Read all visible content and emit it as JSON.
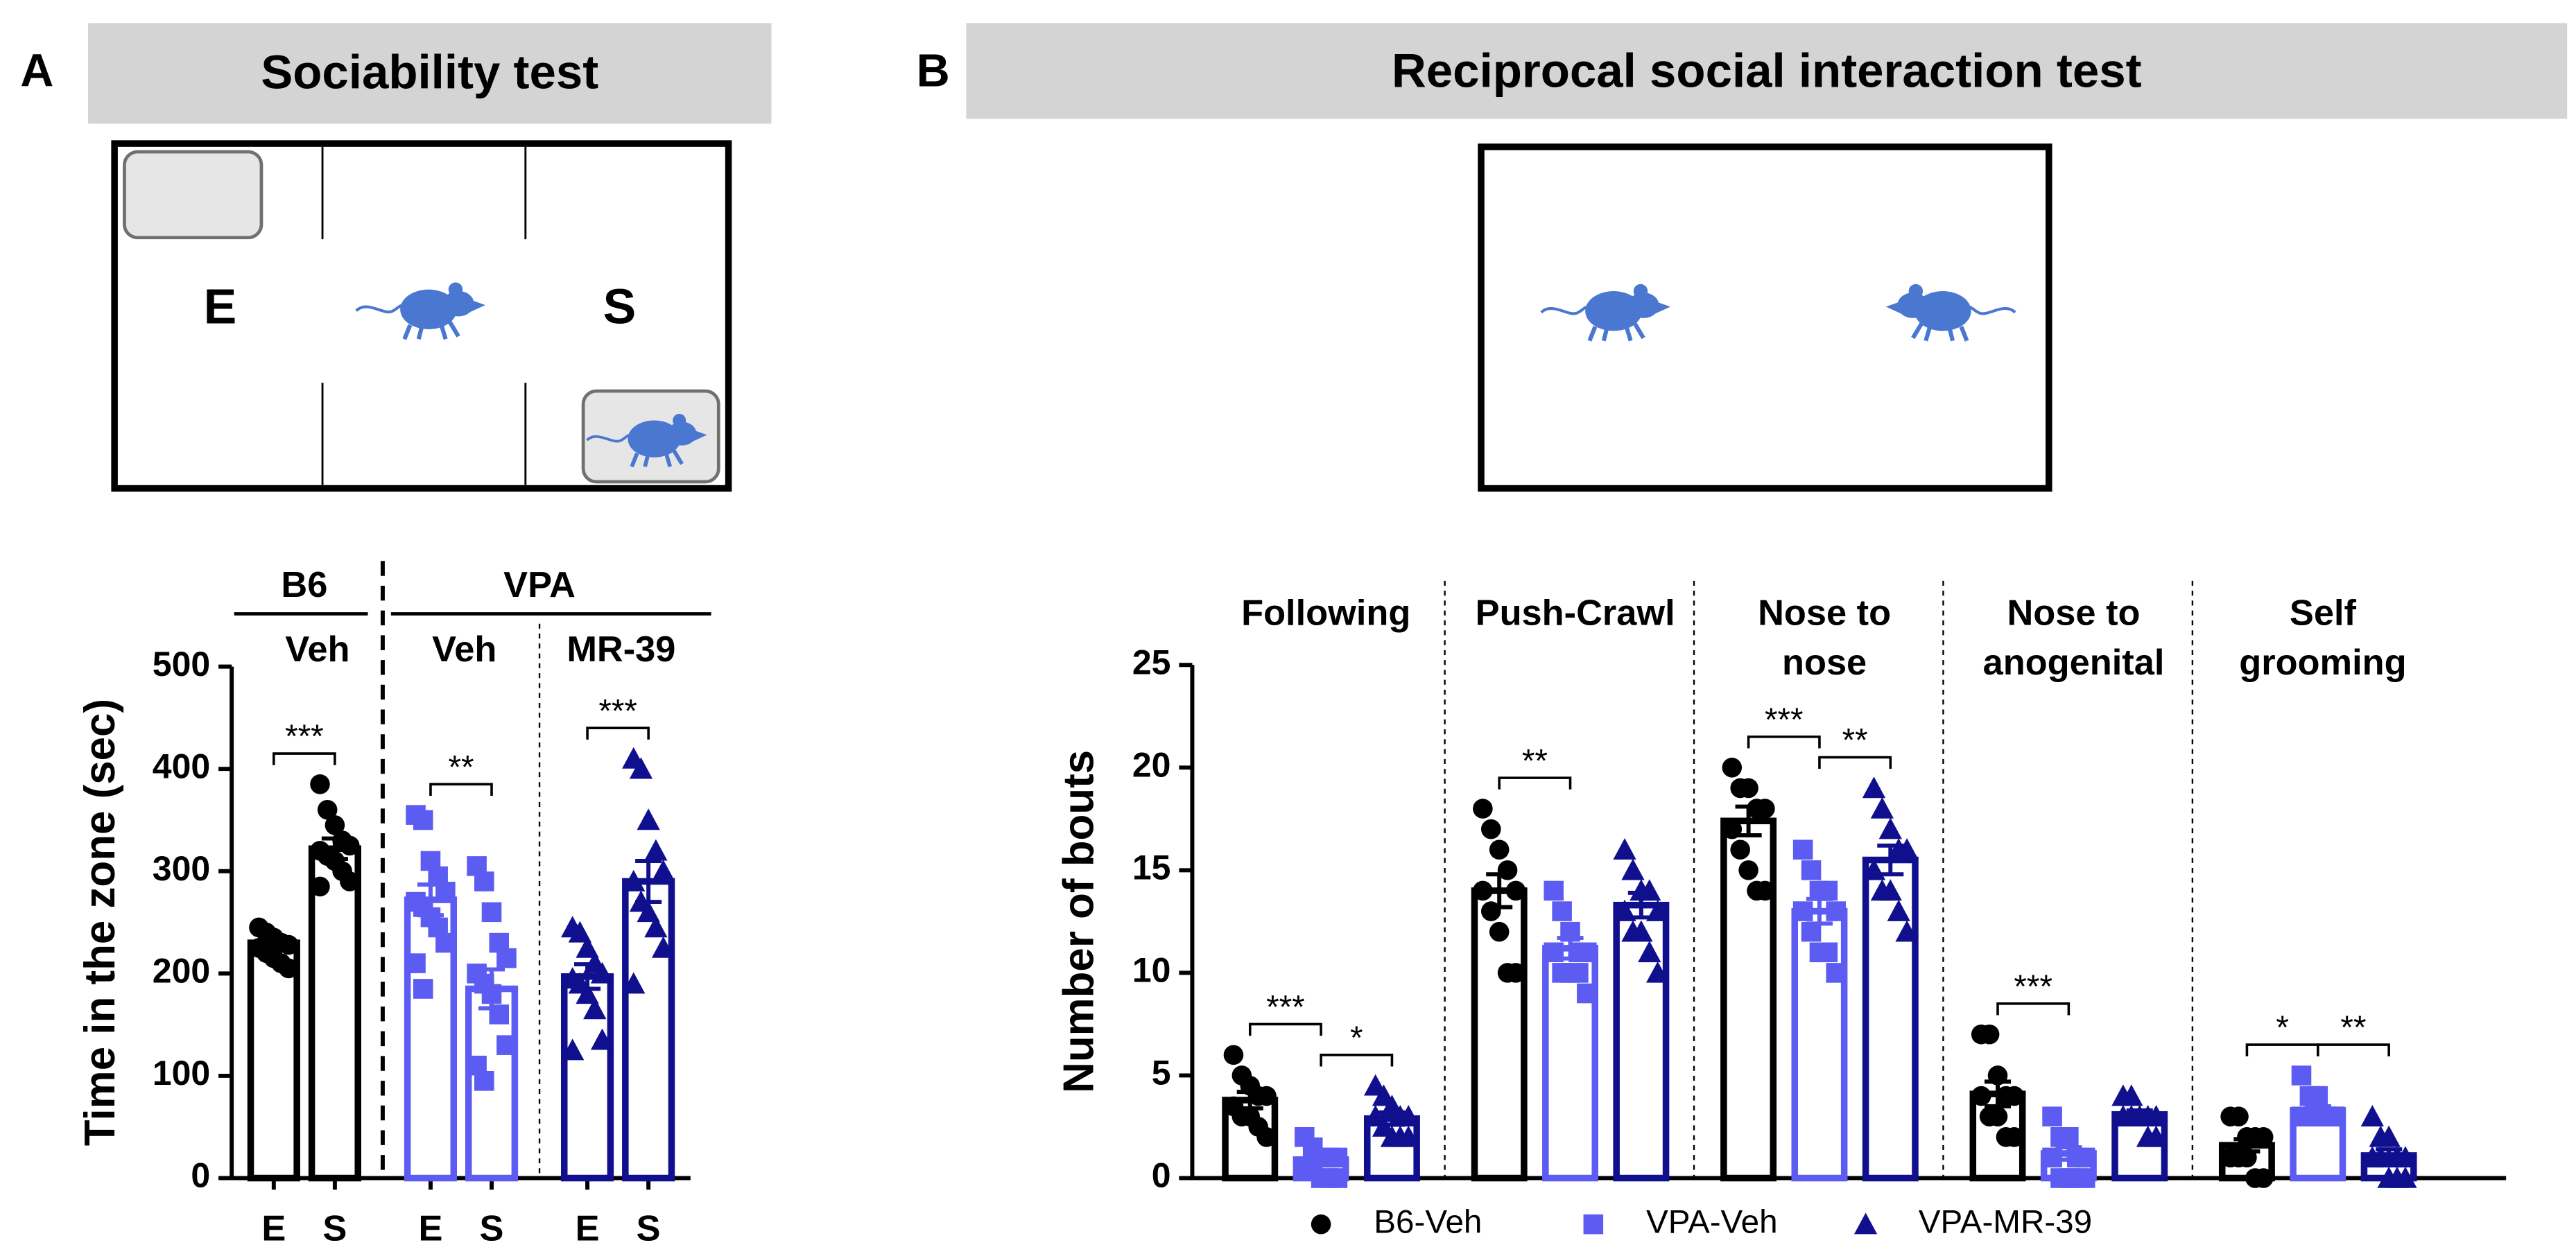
{
  "chart_data": [
    {
      "type": "bar",
      "panel_label": "A",
      "header": "Sociability test",
      "schematic_labels": [
        "E",
        "S"
      ],
      "y_label": "Time in the zone (sec)",
      "ylim": [
        0,
        500
      ],
      "yticks": [
        0,
        100,
        200,
        300,
        400,
        500
      ],
      "group_labels": [
        {
          "label": "B6",
          "subgroups": [
            "Veh"
          ]
        },
        {
          "label": "VPA",
          "subgroups": [
            "Veh",
            "MR-39"
          ]
        }
      ],
      "categories": [
        "E",
        "S",
        "E",
        "S",
        "E",
        "S"
      ],
      "values": [
        230,
        322,
        272,
        185,
        197,
        290
      ],
      "errors": [
        6,
        10,
        15,
        19,
        12,
        20
      ],
      "colors": [
        "#000000",
        "#000000",
        "#5c5cf2",
        "#5c5cf2",
        "#10108f",
        "#10108f"
      ],
      "markers": [
        "circle",
        "circle",
        "square",
        "square",
        "triangle",
        "triangle"
      ],
      "points": [
        [
          245,
          240,
          235,
          230,
          228,
          225,
          220,
          215,
          210,
          205
        ],
        [
          385,
          360,
          345,
          330,
          325,
          320,
          315,
          310,
          300,
          290,
          285
        ],
        [
          355,
          350,
          310,
          295,
          280,
          270,
          265,
          255,
          245,
          230,
          210,
          185
        ],
        [
          305,
          290,
          260,
          230,
          215,
          200,
          190,
          180,
          160,
          130,
          110,
          95
        ],
        [
          245,
          240,
          225,
          210,
          200,
          195,
          190,
          180,
          165,
          135,
          125
        ],
        [
          410,
          400,
          350,
          320,
          300,
          290,
          270,
          260,
          245,
          225,
          190
        ]
      ],
      "significance": [
        {
          "from": 0,
          "to": 1,
          "label": "***"
        },
        {
          "from": 2,
          "to": 3,
          "label": "**"
        },
        {
          "from": 4,
          "to": 5,
          "label": "***"
        }
      ]
    },
    {
      "type": "grouped_bar",
      "panel_label": "B",
      "header": "Reciprocal social interaction test",
      "y_label": "Number of bouts",
      "ylim": [
        0,
        25
      ],
      "yticks": [
        0,
        5,
        10,
        15,
        20,
        25
      ],
      "categories": [
        [
          "Following"
        ],
        [
          "Push-Crawl"
        ],
        [
          "Nose to",
          "nose"
        ],
        [
          "Nose to",
          "anogenital"
        ],
        [
          "Self",
          "grooming"
        ]
      ],
      "series": [
        {
          "name": "B6-Veh",
          "color": "#000000",
          "marker": "circle",
          "values": [
            3.8,
            14,
            17.4,
            4.1,
            1.6
          ],
          "errors": [
            0.4,
            0.8,
            0.7,
            0.6,
            0.3
          ],
          "points": [
            [
              6,
              5,
              4.5,
              4,
              4,
              3.5,
              3,
              3,
              2.5,
              2
            ],
            [
              18,
              17,
              16,
              15,
              14,
              14,
              13,
              12,
              10,
              10
            ],
            [
              20,
              19,
              19,
              18,
              18,
              17,
              16,
              15,
              14,
              14
            ],
            [
              7,
              7,
              5,
              4,
              4,
              4,
              3,
              3,
              2,
              2
            ],
            [
              3,
              3,
              2,
              2,
              2,
              1,
              1,
              1,
              0,
              0
            ]
          ]
        },
        {
          "name": "VPA-Veh",
          "color": "#5c5cf2",
          "marker": "square",
          "values": [
            0.9,
            11.2,
            13,
            1.2,
            3.3
          ],
          "errors": [
            0.2,
            0.5,
            0.6,
            0.3,
            0.2
          ],
          "points": [
            [
              2,
              1.5,
              1,
              1,
              1,
              0.5,
              0.5,
              0,
              0,
              0
            ],
            [
              14,
              13,
              12,
              11,
              11,
              11,
              10,
              10,
              10,
              9
            ],
            [
              16,
              15,
              14,
              14,
              13,
              13,
              12,
              11,
              11,
              10
            ],
            [
              3,
              2,
              2,
              1,
              1,
              1,
              0,
              0,
              0,
              0
            ],
            [
              5,
              4,
              4,
              3,
              3,
              3,
              3,
              3,
              3,
              3
            ]
          ]
        },
        {
          "name": "VPA-MR-39",
          "color": "#10108f",
          "marker": "triangle",
          "values": [
            2.9,
            13.3,
            15.5,
            3.1,
            1.1
          ],
          "errors": [
            0.3,
            0.6,
            0.7,
            0.2,
            0.3
          ],
          "points": [
            [
              4.5,
              4,
              3.5,
              3,
              3,
              3,
              2.5,
              2,
              2,
              2
            ],
            [
              16,
              15,
              14,
              14,
              13,
              13,
              12,
              12,
              11,
              10
            ],
            [
              19,
              18,
              17,
              16,
              16,
              15,
              14,
              14,
              13,
              12
            ],
            [
              4,
              4,
              3,
              3,
              3,
              3,
              3,
              3,
              2,
              2
            ],
            [
              3,
              2,
              2,
              1,
              1,
              1,
              1,
              0,
              0,
              0
            ]
          ]
        }
      ],
      "significance": [
        {
          "category": 0,
          "from": 0,
          "to": 1,
          "label": "***"
        },
        {
          "category": 0,
          "from": 1,
          "to": 2,
          "label": "*"
        },
        {
          "category": 1,
          "from": 0,
          "to": 1,
          "label": "**"
        },
        {
          "category": 2,
          "from": 0,
          "to": 1,
          "label": "***"
        },
        {
          "category": 2,
          "from": 1,
          "to": 2,
          "label": "**"
        },
        {
          "category": 3,
          "from": 0,
          "to": 1,
          "label": "***"
        },
        {
          "category": 4,
          "from": 0,
          "to": 1,
          "label": "*"
        },
        {
          "category": 4,
          "from": 1,
          "to": 2,
          "label": "**"
        }
      ]
    }
  ]
}
